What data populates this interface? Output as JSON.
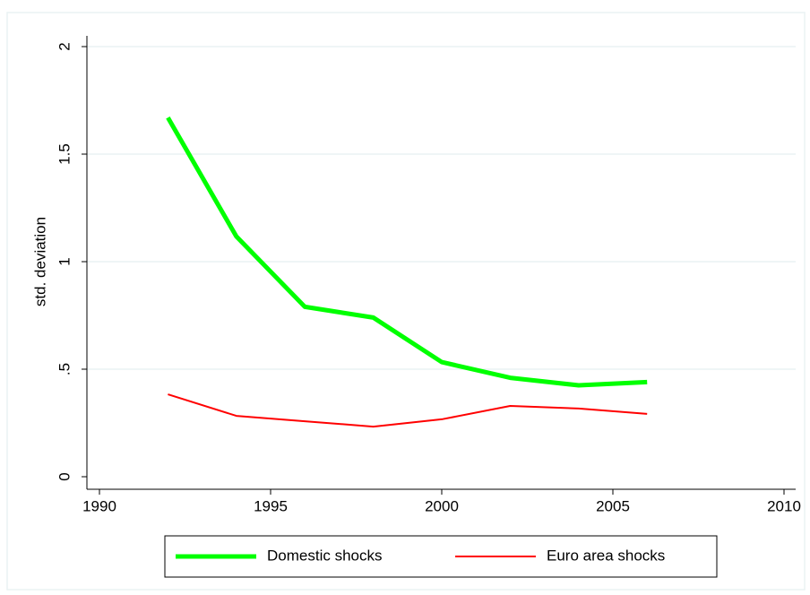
{
  "chart_data": {
    "type": "line",
    "y_label": "std. deviation",
    "x": [
      1992,
      1994,
      1996,
      1998,
      2000,
      2002,
      2004,
      2006
    ],
    "series": [
      {
        "name": "Domestic shocks",
        "color": "#00ff00",
        "values": [
          1.67,
          1.117,
          0.79,
          0.74,
          0.533,
          0.46,
          0.425,
          0.44
        ]
      },
      {
        "name": "Euro area shocks",
        "color": "#ff0000",
        "values": [
          0.383,
          0.283,
          0.258,
          0.233,
          0.267,
          0.329,
          0.317,
          0.292
        ]
      }
    ],
    "xlim": [
      1990,
      2010
    ],
    "xticks": [
      1990,
      1995,
      2000,
      2005,
      2010
    ],
    "ylim": [
      0,
      2
    ],
    "yticks": [
      0,
      {
        "value": 0.5,
        "label": ".5"
      },
      1,
      1.5,
      2
    ],
    "grid": true,
    "legend": "bottom"
  }
}
